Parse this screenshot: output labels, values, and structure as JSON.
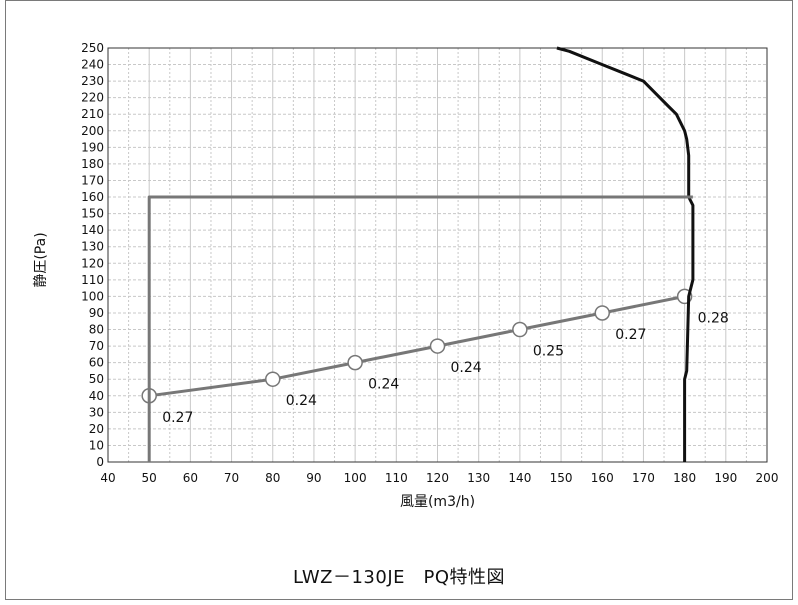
{
  "chart_data": {
    "type": "line",
    "title": "",
    "xlabel": "風量(m3/h)",
    "ylabel": "静圧(Pa)",
    "xlim": [
      40,
      200
    ],
    "ylim": [
      0,
      250
    ],
    "x_ticks": [
      40,
      50,
      60,
      70,
      80,
      90,
      100,
      110,
      120,
      130,
      140,
      150,
      160,
      170,
      180,
      190,
      200
    ],
    "y_ticks": [
      0,
      10,
      20,
      30,
      40,
      50,
      60,
      70,
      80,
      90,
      100,
      110,
      120,
      130,
      140,
      150,
      160,
      170,
      180,
      190,
      200,
      210,
      220,
      230,
      240,
      250
    ],
    "grid": true,
    "colors": {
      "measured": "#777777",
      "pq_curve": "#111111",
      "frame": "#777777",
      "grid": "#c8c8c8"
    },
    "series": [
      {
        "role": "measured",
        "marker": "circle",
        "points": [
          [
            50,
            40
          ],
          [
            80,
            50
          ],
          [
            100,
            60
          ],
          [
            120,
            70
          ],
          [
            140,
            80
          ],
          [
            160,
            90
          ],
          [
            180,
            100
          ]
        ],
        "labels": [
          "0.27",
          "0.24",
          "0.24",
          "0.24",
          "0.25",
          "0.27",
          "0.28"
        ]
      },
      {
        "role": "pq_curve",
        "points": [
          [
            180,
            0
          ],
          [
            180,
            50
          ],
          [
            180.5,
            55
          ],
          [
            181,
            100
          ],
          [
            182,
            110
          ],
          [
            182,
            155
          ],
          [
            181,
            160
          ],
          [
            181,
            185
          ],
          [
            180.5,
            195
          ],
          [
            180,
            200
          ],
          [
            178,
            210
          ],
          [
            176,
            215
          ],
          [
            170,
            230
          ],
          [
            165,
            235
          ],
          [
            160,
            240
          ],
          [
            152,
            248
          ],
          [
            149,
            250
          ]
        ]
      },
      {
        "role": "frame",
        "points": [
          [
            50,
            0
          ],
          [
            50,
            160
          ],
          [
            182,
            160
          ]
        ]
      }
    ]
  },
  "caption": "LWZ－130JE　PQ特性図"
}
